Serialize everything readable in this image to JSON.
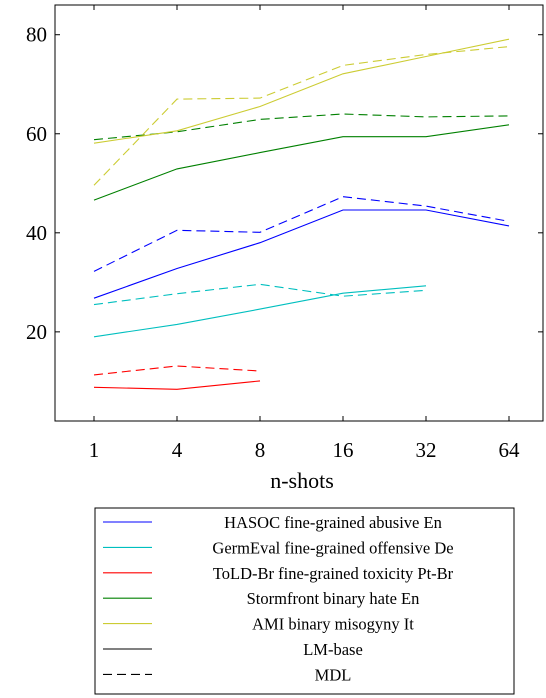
{
  "chart_data": {
    "type": "line",
    "title": "",
    "xlabel": "n-shots",
    "ylabel": "",
    "categories": [
      "1",
      "4",
      "8",
      "16",
      "32",
      "64"
    ],
    "yticks": [
      20,
      40,
      60,
      80
    ],
    "ylim": [
      2,
      86
    ],
    "grid": false,
    "legend_position": "bottom",
    "series": [
      {
        "name": "HASOC fine-grained abusive En",
        "color": "#0000ff",
        "style": "solid",
        "values": [
          26.8,
          32.8,
          38,
          44.6,
          44.6,
          41.4
        ]
      },
      {
        "name": "HASOC fine-grained abusive En",
        "color": "#0000ff",
        "style": "dashed",
        "values": [
          32.2,
          40.5,
          40.1,
          47.3,
          45.4,
          42.3
        ]
      },
      {
        "name": "GermEval fine-grained offensive De",
        "color": "#00bfbf",
        "style": "solid",
        "values": [
          19,
          21.5,
          24.6,
          27.8,
          29.3,
          null
        ]
      },
      {
        "name": "GermEval fine-grained offensive De",
        "color": "#00bfbf",
        "style": "dashed",
        "values": [
          25.5,
          27.7,
          29.6,
          27.2,
          28.4,
          null
        ]
      },
      {
        "name": "ToLD-Br fine-grained toxicity Pt-Br",
        "color": "#ff0000",
        "style": "solid",
        "values": [
          8.8,
          8.4,
          10.1,
          null,
          null,
          null
        ]
      },
      {
        "name": "ToLD-Br fine-grained toxicity Pt-Br",
        "color": "#ff0000",
        "style": "dashed",
        "values": [
          11.3,
          13.1,
          12.1,
          null,
          null,
          null
        ]
      },
      {
        "name": "Stormfront binary hate En",
        "color": "#008000",
        "style": "solid",
        "values": [
          46.6,
          52.9,
          56.2,
          59.4,
          59.4,
          61.8
        ]
      },
      {
        "name": "Stormfront binary hate En",
        "color": "#008000",
        "style": "dashed",
        "values": [
          58.8,
          60.4,
          62.9,
          64,
          63.4,
          63.6
        ]
      },
      {
        "name": "AMI binary misogyny It",
        "color": "#cccc33",
        "style": "solid",
        "values": [
          58.1,
          60.6,
          65.5,
          72.1,
          75.6,
          79.1
        ]
      },
      {
        "name": "AMI binary misogyny It",
        "color": "#cccc33",
        "style": "dashed",
        "values": [
          49.6,
          67,
          67.2,
          73.8,
          76,
          77.6
        ]
      }
    ],
    "legend": [
      {
        "label": "HASOC fine-grained abusive En",
        "color": "#0000ff",
        "style": "solid"
      },
      {
        "label": "GermEval fine-grained offensive De",
        "color": "#00bfbf",
        "style": "solid"
      },
      {
        "label": "ToLD-Br fine-grained toxicity Pt-Br",
        "color": "#ff0000",
        "style": "solid"
      },
      {
        "label": "Stormfront binary hate En",
        "color": "#008000",
        "style": "solid"
      },
      {
        "label": "AMI binary misogyny It",
        "color": "#cccc33",
        "style": "solid"
      },
      {
        "label": "LM-base",
        "color": "#000000",
        "style": "solid"
      },
      {
        "label": "MDL",
        "color": "#000000",
        "style": "dashed"
      }
    ]
  }
}
